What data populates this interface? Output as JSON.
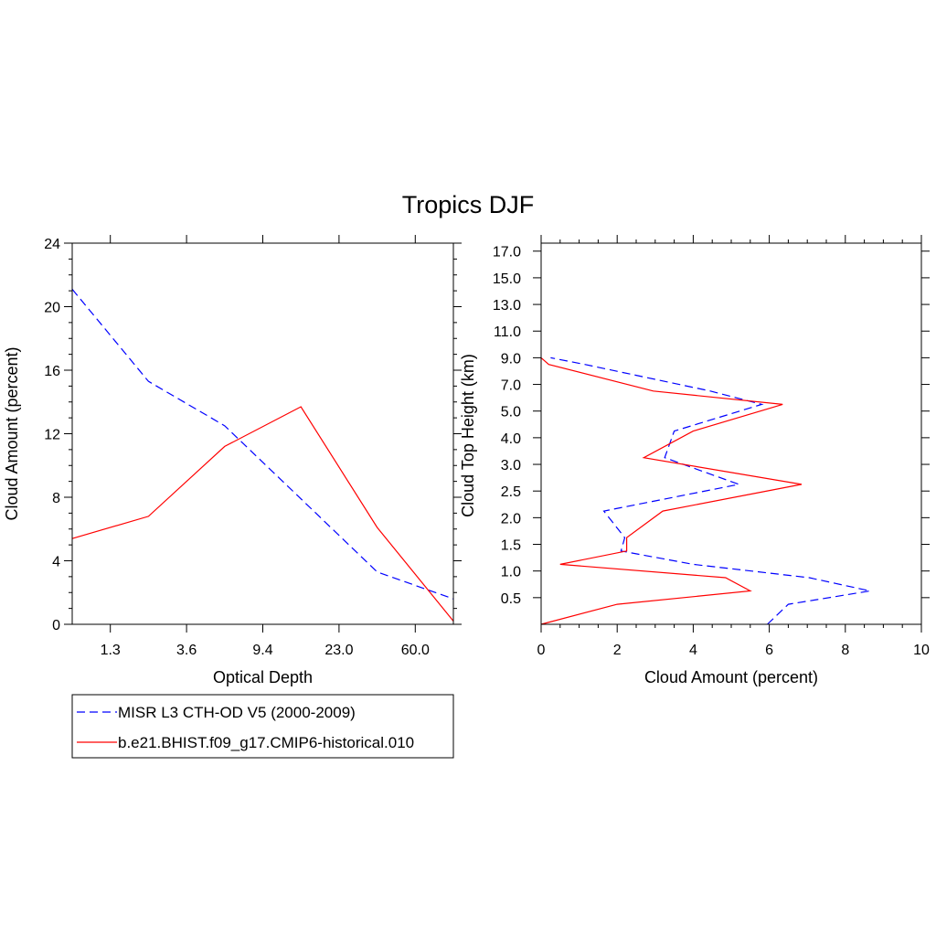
{
  "title": "Tropics DJF",
  "colors": {
    "obs": "#0000ff",
    "model": "#ff0000",
    "axis": "#000000"
  },
  "legend": [
    {
      "name": "MISR L3 CTH-OD V5 (2000-2009)",
      "color": "#0000ff",
      "dash": true
    },
    {
      "name": "b.e21.BHIST.f09_g17.CMIP6-historical.010",
      "color": "#ff0000",
      "dash": false
    }
  ],
  "chart_data": [
    {
      "type": "line",
      "xlabel": "Optical Depth",
      "ylabel": "Cloud Amount (percent)",
      "x_tick_labels": [
        "1.3",
        "3.6",
        "9.4",
        "23.0",
        "60.0"
      ],
      "x_tick_positions": [
        1,
        3,
        5,
        7,
        9
      ],
      "xlim": [
        0,
        10
      ],
      "y_tick_labels": [
        "0",
        "4",
        "8",
        "12",
        "16",
        "20",
        "24"
      ],
      "y_tick_values": [
        0,
        4,
        8,
        12,
        16,
        20,
        24
      ],
      "ylim": [
        0,
        24
      ],
      "series": [
        {
          "name": "MISR L3 CTH-OD V5 (2000-2009)",
          "color": "#0000ff",
          "dash": true,
          "x": [
            0,
            2,
            4,
            6,
            8,
            10
          ],
          "values": [
            21.1,
            15.3,
            12.5,
            7.9,
            3.3,
            1.6
          ]
        },
        {
          "name": "b.e21.BHIST.f09_g17.CMIP6-historical.010",
          "color": "#ff0000",
          "dash": false,
          "x": [
            0,
            2,
            4,
            6,
            8,
            10
          ],
          "values": [
            5.4,
            6.8,
            11.2,
            13.7,
            6.1,
            0.2
          ]
        }
      ]
    },
    {
      "type": "line",
      "xlabel": "Cloud Amount (percent)",
      "ylabel": "Cloud Top Height (km)",
      "x_tick_labels": [
        "0",
        "2",
        "4",
        "6",
        "8",
        "10"
      ],
      "x_tick_values": [
        0,
        2,
        4,
        6,
        8,
        10
      ],
      "xlim": [
        0,
        10
      ],
      "y_tick_labels": [
        "0.5",
        "1.0",
        "1.5",
        "2.0",
        "2.5",
        "3.0",
        "4.0",
        "5.0",
        "7.0",
        "9.0",
        "11.0",
        "13.0",
        "15.0",
        "17.0"
      ],
      "y_tick_positions": [
        1,
        2,
        3,
        4,
        5,
        6,
        7,
        8,
        9,
        10,
        11,
        12,
        13,
        14
      ],
      "ylim": [
        0,
        14.3
      ],
      "series": [
        {
          "name": "MISR L3 CTH-OD V5 (2000-2009)",
          "color": "#0000ff",
          "dash": true,
          "x": [
            5.95,
            6.5,
            8.65,
            7.05,
            4.0,
            2.1,
            2.2,
            1.65,
            5.2,
            3.25,
            3.5,
            5.8,
            4.45,
            1.15,
            0.25
          ],
          "y_pos": [
            0,
            0.75,
            1.25,
            1.75,
            2.25,
            2.75,
            3.25,
            4.25,
            5.25,
            6.25,
            7.25,
            8.25,
            8.75,
            9.75,
            10.0
          ]
        },
        {
          "name": "b.e21.BHIST.f09_g17.CMIP6-historical.010",
          "color": "#ff0000",
          "dash": false,
          "x": [
            0.0,
            2.0,
            5.5,
            4.85,
            0.5,
            2.25,
            2.25,
            3.2,
            6.85,
            2.7,
            4.0,
            6.35,
            2.95,
            0.2,
            0.0
          ],
          "y_pos": [
            0,
            0.75,
            1.25,
            1.75,
            2.25,
            2.75,
            3.25,
            4.25,
            5.25,
            6.25,
            7.25,
            8.25,
            8.75,
            9.75,
            10.0
          ]
        }
      ]
    }
  ]
}
